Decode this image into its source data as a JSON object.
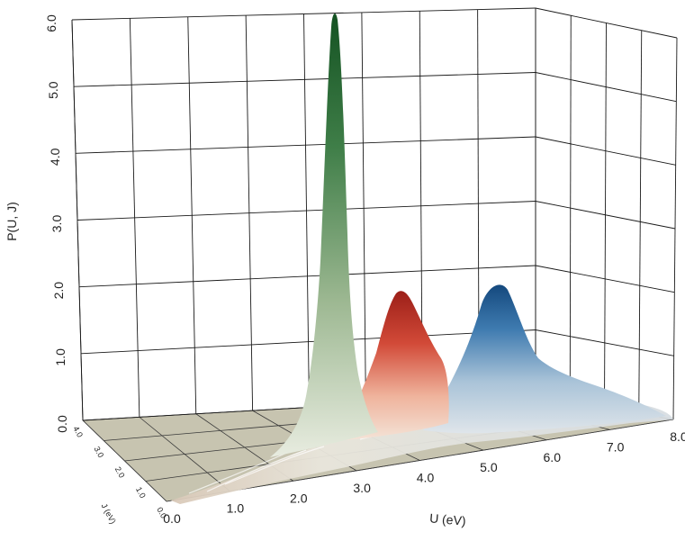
{
  "chart_data": {
    "type": "surface-3d",
    "title": "",
    "xlabel": "U (eV)",
    "ylabel": "J (eV)",
    "zlabel": "P(U, J)",
    "x_ticks": [
      "0.0",
      "1.0",
      "2.0",
      "3.0",
      "4.0",
      "5.0",
      "6.0",
      "7.0",
      "8.0"
    ],
    "y_ticks": [
      "0.0",
      "1.0",
      "2.0",
      "3.0",
      "4.0"
    ],
    "z_ticks": [
      "0.0",
      "1.0",
      "2.0",
      "3.0",
      "4.0",
      "5.0",
      "6.0"
    ],
    "xlim": [
      0,
      8
    ],
    "ylim": [
      0,
      4
    ],
    "zlim": [
      0,
      6
    ],
    "grid": true,
    "colors": {
      "floor": "#c7c4b0",
      "green": "#1f5f2c",
      "red": "#b52a20",
      "blue": "#1c5a8c"
    },
    "series": [
      {
        "color": "green",
        "peak_u": 2.8,
        "peak_j": 1.2,
        "peak_p": 6.0
      },
      {
        "color": "red",
        "peak_u": 3.9,
        "peak_j": 1.2,
        "peak_p": 2.2
      },
      {
        "color": "blue",
        "peak_u": 5.0,
        "peak_j": 1.2,
        "peak_p": 2.1
      }
    ]
  }
}
